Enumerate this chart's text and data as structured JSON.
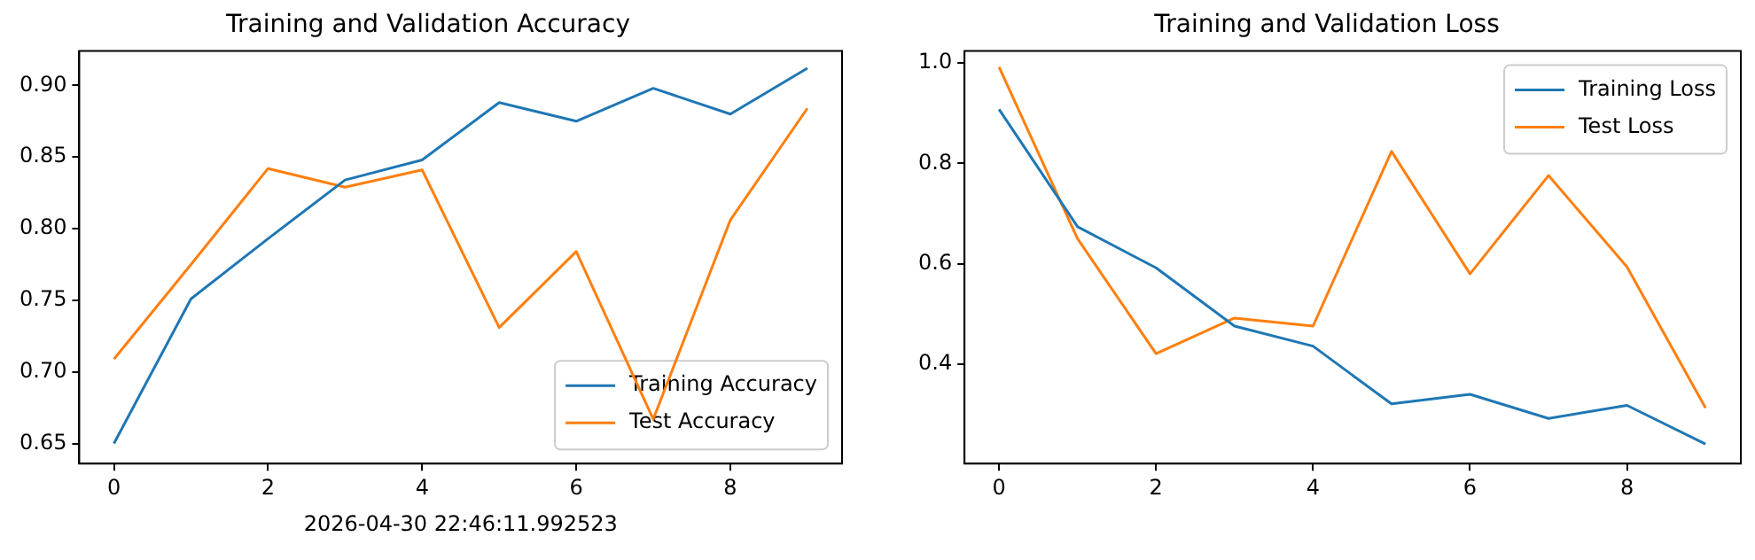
{
  "chart_data": [
    {
      "type": "line",
      "title": "Training and Validation Accuracy",
      "x": [
        0,
        1,
        2,
        3,
        4,
        5,
        6,
        7,
        8,
        9
      ],
      "series": [
        {
          "name": "Training Accuracy",
          "color": "#1f77b4",
          "values": [
            0.65,
            0.751,
            0.793,
            0.834,
            0.848,
            0.888,
            0.875,
            0.898,
            0.88,
            0.912
          ]
        },
        {
          "name": "Test Accuracy",
          "color": "#ff7f0e",
          "values": [
            0.709,
            0.775,
            0.842,
            0.829,
            0.841,
            0.731,
            0.784,
            0.667,
            0.806,
            0.884
          ]
        }
      ],
      "xlim": [
        -0.45,
        9.45
      ],
      "xticks": [
        0,
        2,
        4,
        6,
        8
      ],
      "ylim": [
        0.636,
        0.924
      ],
      "yticks": [
        0.65,
        {
          "value": 0.7,
          "label": "0.70"
        },
        0.75,
        {
          "value": 0.8,
          "label": "0.80"
        },
        0.85,
        {
          "value": 0.9,
          "label": "0.90"
        }
      ],
      "grid": false,
      "legend": "bottom right",
      "marker": "none",
      "line_style": "solid",
      "annotations": [
        "2026-04-30 22:46:11.992523"
      ]
    },
    {
      "type": "line",
      "title": "Training and Validation Loss",
      "x": [
        0,
        1,
        2,
        3,
        4,
        5,
        6,
        7,
        8,
        9
      ],
      "series": [
        {
          "name": "Training Loss",
          "color": "#1f77b4",
          "values": [
            0.908,
            0.674,
            0.592,
            0.476,
            0.436,
            0.321,
            0.34,
            0.292,
            0.318,
            0.241
          ]
        },
        {
          "name": "Test Loss",
          "color": "#ff7f0e",
          "values": [
            0.992,
            0.65,
            0.421,
            0.492,
            0.476,
            0.824,
            0.58,
            0.776,
            0.594,
            0.313
          ]
        }
      ],
      "xlim": [
        -0.44,
        9.45
      ],
      "xticks": [
        0,
        2,
        4,
        6,
        8
      ],
      "ylim": [
        0.202,
        1.024
      ],
      "yticks": [
        0.4,
        0.6,
        0.8,
        {
          "value": 1,
          "label": "1.0"
        }
      ],
      "grid": false,
      "legend": "top right",
      "marker": "none",
      "line_style": "solid"
    }
  ]
}
